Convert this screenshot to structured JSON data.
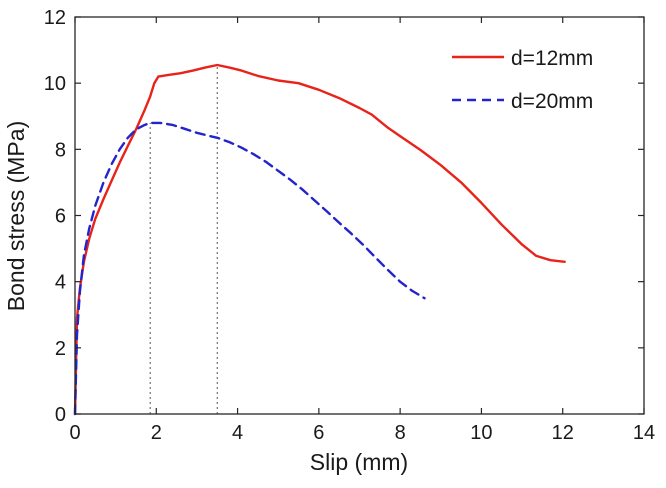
{
  "chart_data": {
    "type": "line",
    "title": "",
    "xlabel": "Slip (mm)",
    "ylabel": "Bond stress (MPa)",
    "xlim": [
      0,
      14
    ],
    "ylim": [
      0,
      12
    ],
    "xticks": [
      0,
      2,
      4,
      6,
      8,
      10,
      12,
      14
    ],
    "yticks": [
      0,
      2,
      4,
      6,
      8,
      10,
      12
    ],
    "grid": false,
    "legend_position": "top-right",
    "series": [
      {
        "name": "d=12mm",
        "color": "#e8231a",
        "style": "solid",
        "points": [
          [
            0,
            0
          ],
          [
            0.05,
            2.9
          ],
          [
            0.12,
            3.8
          ],
          [
            0.22,
            4.6
          ],
          [
            0.35,
            5.3
          ],
          [
            0.5,
            5.9
          ],
          [
            0.7,
            6.5
          ],
          [
            0.9,
            7.05
          ],
          [
            1.1,
            7.6
          ],
          [
            1.3,
            8.1
          ],
          [
            1.5,
            8.6
          ],
          [
            1.7,
            9.15
          ],
          [
            1.85,
            9.6
          ],
          [
            1.95,
            10.0
          ],
          [
            2.05,
            10.2
          ],
          [
            2.3,
            10.25
          ],
          [
            2.6,
            10.3
          ],
          [
            2.9,
            10.38
          ],
          [
            3.2,
            10.47
          ],
          [
            3.5,
            10.55
          ],
          [
            3.8,
            10.47
          ],
          [
            4.1,
            10.38
          ],
          [
            4.5,
            10.22
          ],
          [
            5.0,
            10.08
          ],
          [
            5.5,
            10.0
          ],
          [
            6.0,
            9.8
          ],
          [
            6.5,
            9.55
          ],
          [
            7.0,
            9.25
          ],
          [
            7.3,
            9.05
          ],
          [
            7.7,
            8.65
          ],
          [
            8.0,
            8.4
          ],
          [
            8.5,
            7.98
          ],
          [
            9.0,
            7.52
          ],
          [
            9.5,
            7.0
          ],
          [
            10.0,
            6.38
          ],
          [
            10.5,
            5.72
          ],
          [
            11.0,
            5.12
          ],
          [
            11.35,
            4.78
          ],
          [
            11.7,
            4.65
          ],
          [
            12.05,
            4.6
          ]
        ]
      },
      {
        "name": "d=20mm",
        "color": "#2424cc",
        "style": "dashed",
        "points": [
          [
            0,
            0
          ],
          [
            0.05,
            2.4
          ],
          [
            0.12,
            3.7
          ],
          [
            0.22,
            4.8
          ],
          [
            0.35,
            5.6
          ],
          [
            0.5,
            6.3
          ],
          [
            0.7,
            7.0
          ],
          [
            0.9,
            7.55
          ],
          [
            1.1,
            8.0
          ],
          [
            1.3,
            8.35
          ],
          [
            1.5,
            8.6
          ],
          [
            1.7,
            8.73
          ],
          [
            1.85,
            8.8
          ],
          [
            2.1,
            8.8
          ],
          [
            2.4,
            8.74
          ],
          [
            2.7,
            8.62
          ],
          [
            3.0,
            8.5
          ],
          [
            3.25,
            8.42
          ],
          [
            3.5,
            8.35
          ],
          [
            3.8,
            8.22
          ],
          [
            4.1,
            8.05
          ],
          [
            4.4,
            7.85
          ],
          [
            4.7,
            7.62
          ],
          [
            5.0,
            7.35
          ],
          [
            5.3,
            7.08
          ],
          [
            5.6,
            6.78
          ],
          [
            5.9,
            6.45
          ],
          [
            6.2,
            6.12
          ],
          [
            6.5,
            5.78
          ],
          [
            6.8,
            5.45
          ],
          [
            7.1,
            5.1
          ],
          [
            7.4,
            4.72
          ],
          [
            7.7,
            4.35
          ],
          [
            8.0,
            4.0
          ],
          [
            8.3,
            3.72
          ],
          [
            8.6,
            3.5
          ]
        ]
      }
    ],
    "annotations": [
      {
        "type": "vline-dotted",
        "x": 1.85,
        "y_top": 8.8
      },
      {
        "type": "vline-dotted",
        "x": 3.5,
        "y_top": 10.55
      }
    ]
  },
  "colors": {
    "axis": "#262626",
    "annotation": "#555555",
    "background": "#ffffff"
  }
}
